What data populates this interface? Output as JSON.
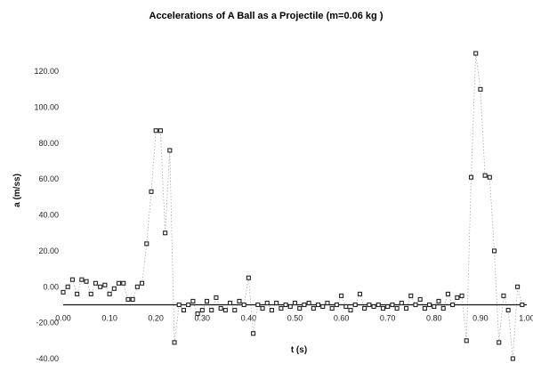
{
  "chart_data": {
    "type": "scatter",
    "title": "Accelerations of A Ball as a Projectile (m=0.06 kg )",
    "xlabel": "t (s)",
    "ylabel": "a (m/ss)",
    "xlim": [
      0,
      1.0
    ],
    "ylim": [
      -40,
      130
    ],
    "x_ticks": [
      {
        "v": 0.0,
        "label": "0.00"
      },
      {
        "v": 0.1,
        "label": "0.10"
      },
      {
        "v": 0.2,
        "label": "0.20"
      },
      {
        "v": 0.3,
        "label": "0.30"
      },
      {
        "v": 0.4,
        "label": "0.40"
      },
      {
        "v": 0.5,
        "label": "0.50"
      },
      {
        "v": 0.6,
        "label": "0.60"
      },
      {
        "v": 0.7,
        "label": "0.70"
      },
      {
        "v": 0.8,
        "label": "0.80"
      },
      {
        "v": 0.9,
        "label": "0.90"
      },
      {
        "v": 1.0,
        "label": "1.00"
      }
    ],
    "y_ticks": [
      {
        "v": -40,
        "label": "-40.00"
      },
      {
        "v": -20,
        "label": "-20.00"
      },
      {
        "v": 0,
        "label": "0.00"
      },
      {
        "v": 20,
        "label": "20.00"
      },
      {
        "v": 40,
        "label": "40.00"
      },
      {
        "v": 60,
        "label": "60.00"
      },
      {
        "v": 80,
        "label": "80.00"
      },
      {
        "v": 100,
        "label": "100.00"
      },
      {
        "v": 120,
        "label": "120.00"
      }
    ],
    "reference_line": -10,
    "grid": false,
    "legend": "none",
    "colors": {
      "points": "#222222",
      "dotted": "#aaaaaa",
      "axis": "#111111"
    },
    "series": [
      {
        "points": [
          [
            0.0,
            -3
          ],
          [
            0.01,
            0
          ],
          [
            0.02,
            4
          ],
          [
            0.03,
            -4
          ],
          [
            0.04,
            4
          ],
          [
            0.05,
            3
          ],
          [
            0.06,
            -4
          ],
          [
            0.07,
            2
          ],
          [
            0.08,
            0
          ],
          [
            0.09,
            1
          ],
          [
            0.1,
            -4
          ],
          [
            0.11,
            -1
          ],
          [
            0.12,
            2
          ],
          [
            0.13,
            2
          ],
          [
            0.14,
            -7
          ],
          [
            0.15,
            -7
          ],
          [
            0.16,
            0
          ],
          [
            0.17,
            2
          ],
          [
            0.18,
            24
          ],
          [
            0.19,
            53
          ],
          [
            0.2,
            87
          ],
          [
            0.21,
            87
          ],
          [
            0.22,
            30
          ],
          [
            0.23,
            76
          ],
          [
            0.24,
            -31
          ],
          [
            0.25,
            -10
          ],
          [
            0.26,
            -13
          ],
          [
            0.27,
            -10
          ],
          [
            0.28,
            -8
          ],
          [
            0.29,
            -15
          ],
          [
            0.3,
            -13
          ],
          [
            0.31,
            -8
          ],
          [
            0.32,
            -13
          ],
          [
            0.33,
            -6
          ],
          [
            0.34,
            -12
          ],
          [
            0.35,
            -13
          ],
          [
            0.36,
            -9
          ],
          [
            0.37,
            -13
          ],
          [
            0.38,
            -8
          ],
          [
            0.39,
            -10
          ],
          [
            0.4,
            5
          ],
          [
            0.41,
            -26
          ],
          [
            0.42,
            -10
          ],
          [
            0.43,
            -12
          ],
          [
            0.44,
            -9
          ],
          [
            0.45,
            -13
          ],
          [
            0.46,
            -9
          ],
          [
            0.47,
            -12
          ],
          [
            0.48,
            -10
          ],
          [
            0.49,
            -11
          ],
          [
            0.5,
            -9
          ],
          [
            0.51,
            -12
          ],
          [
            0.52,
            -10
          ],
          [
            0.53,
            -9
          ],
          [
            0.54,
            -12
          ],
          [
            0.55,
            -10
          ],
          [
            0.56,
            -11
          ],
          [
            0.57,
            -9
          ],
          [
            0.58,
            -12
          ],
          [
            0.59,
            -10
          ],
          [
            0.6,
            -5
          ],
          [
            0.61,
            -11
          ],
          [
            0.62,
            -13
          ],
          [
            0.63,
            -10
          ],
          [
            0.64,
            -4
          ],
          [
            0.65,
            -12
          ],
          [
            0.66,
            -10
          ],
          [
            0.67,
            -11
          ],
          [
            0.68,
            -10
          ],
          [
            0.69,
            -12
          ],
          [
            0.7,
            -11
          ],
          [
            0.71,
            -10
          ],
          [
            0.72,
            -12
          ],
          [
            0.73,
            -9
          ],
          [
            0.74,
            -12
          ],
          [
            0.75,
            -5
          ],
          [
            0.76,
            -10
          ],
          [
            0.77,
            -7
          ],
          [
            0.78,
            -12
          ],
          [
            0.79,
            -10
          ],
          [
            0.8,
            -11
          ],
          [
            0.81,
            -8
          ],
          [
            0.82,
            -12
          ],
          [
            0.83,
            -4
          ],
          [
            0.84,
            -10
          ],
          [
            0.85,
            -6
          ],
          [
            0.86,
            -5
          ],
          [
            0.87,
            -30
          ],
          [
            0.88,
            61
          ],
          [
            0.89,
            130
          ],
          [
            0.9,
            110
          ],
          [
            0.91,
            62
          ],
          [
            0.92,
            61
          ],
          [
            0.93,
            20
          ],
          [
            0.94,
            -31
          ],
          [
            0.95,
            -5
          ],
          [
            0.96,
            -13
          ],
          [
            0.97,
            -40
          ],
          [
            0.98,
            0
          ],
          [
            0.99,
            -10
          ]
        ]
      }
    ]
  }
}
